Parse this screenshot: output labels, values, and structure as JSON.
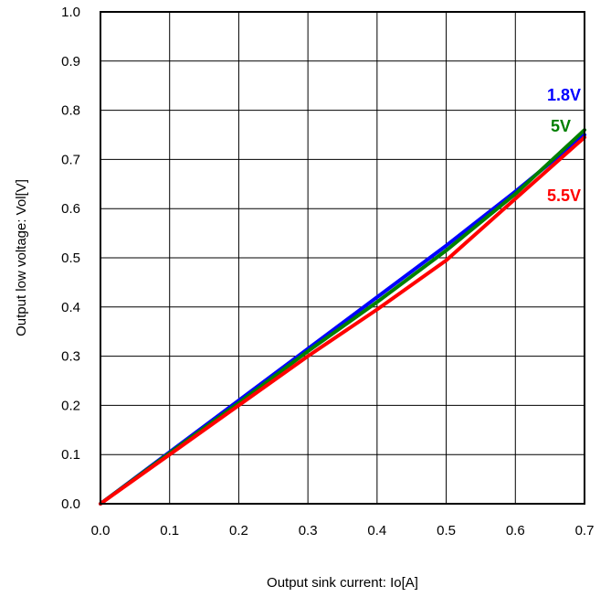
{
  "chart_data": {
    "type": "line",
    "title": "",
    "xlabel": "Output sink current: Io[A]",
    "ylabel": "Output low voltage: Vol[V]",
    "xlim": [
      0,
      0.7
    ],
    "ylim": [
      0,
      1.0
    ],
    "grid": true,
    "x_ticks": [
      "0.0",
      "0.1",
      "0.2",
      "0.3",
      "0.4",
      "0.5",
      "0.6",
      "0.7"
    ],
    "y_ticks": [
      "0.0",
      "0.1",
      "0.2",
      "0.3",
      "0.4",
      "0.5",
      "0.6",
      "0.7",
      "0.8",
      "0.9",
      "1.0"
    ],
    "series": [
      {
        "name": "1.8V",
        "color": "#0000ff",
        "x": [
          0.0,
          0.1,
          0.2,
          0.3,
          0.4,
          0.5,
          0.6,
          0.7
        ],
        "y": [
          0.0,
          0.105,
          0.21,
          0.315,
          0.42,
          0.525,
          0.635,
          0.75
        ]
      },
      {
        "name": "5V",
        "color": "#008000",
        "x": [
          0.0,
          0.1,
          0.2,
          0.3,
          0.4,
          0.5,
          0.6,
          0.7
        ],
        "y": [
          0.0,
          0.103,
          0.205,
          0.31,
          0.41,
          0.515,
          0.63,
          0.76
        ]
      },
      {
        "name": "5.5V",
        "color": "#ff0000",
        "x": [
          0.0,
          0.1,
          0.2,
          0.3,
          0.4,
          0.5,
          0.6,
          0.7
        ],
        "y": [
          0.0,
          0.1,
          0.2,
          0.3,
          0.395,
          0.495,
          0.62,
          0.745
        ]
      }
    ]
  }
}
